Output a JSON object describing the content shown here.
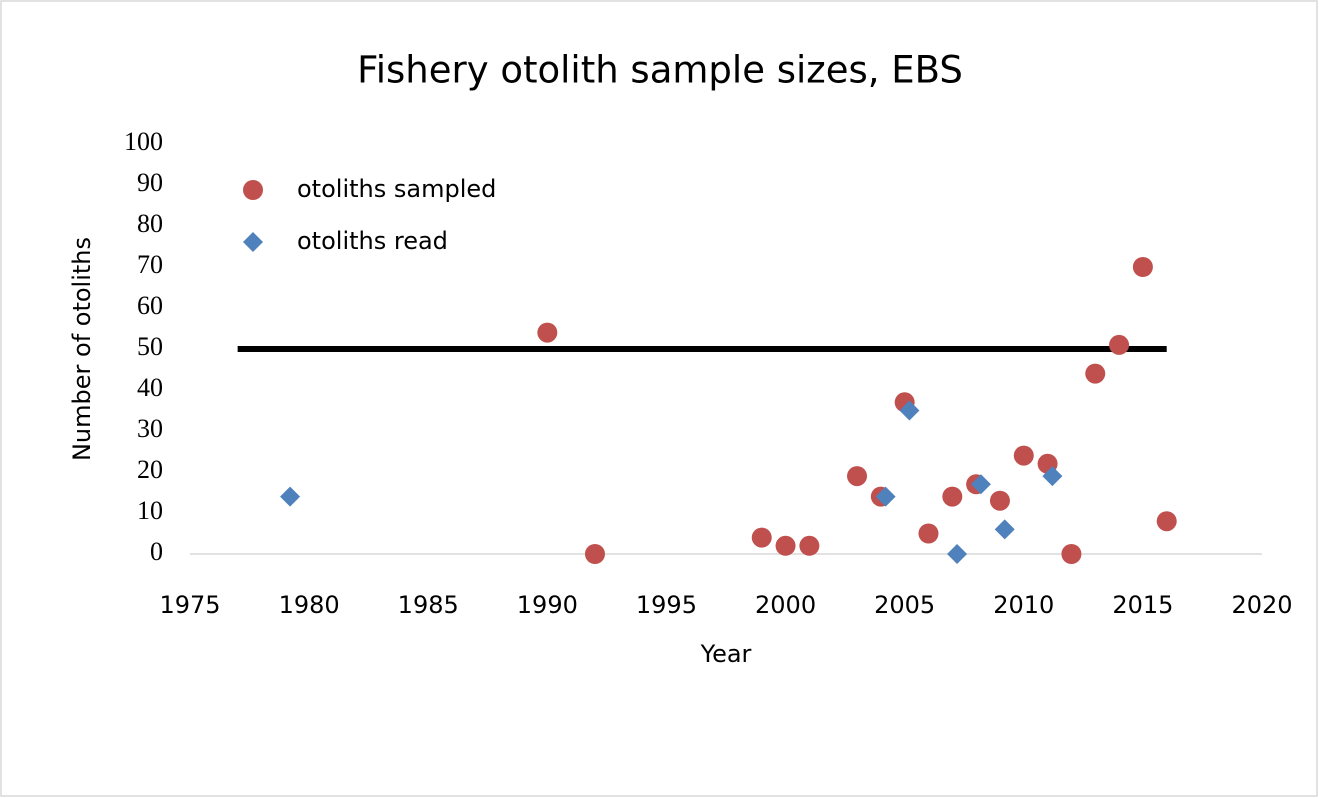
{
  "chart_data": {
    "type": "scatter",
    "title": "Fishery otolith sample sizes, EBS",
    "x_label": "Year",
    "y_label": "Number of otoliths",
    "xlim": [
      1975,
      2020
    ],
    "xticks": [
      1975,
      1980,
      1985,
      1990,
      1995,
      2000,
      2005,
      2010,
      2015,
      2020
    ],
    "ylim": [
      0,
      100
    ],
    "yticks": [
      0,
      10,
      20,
      30,
      40,
      50,
      60,
      70,
      80,
      90,
      100
    ],
    "legend": "top-left",
    "series": [
      {
        "name": "otoliths sampled",
        "color": "#c0504d",
        "marker": "circle",
        "x": [
          1990,
          1992,
          1999,
          2000,
          2001,
          2003,
          2004,
          2005,
          2006,
          2007,
          2008,
          2009,
          2010,
          2011,
          2012,
          2013,
          2014,
          2015,
          2016
        ],
        "values": [
          54,
          0,
          4,
          2,
          2,
          19,
          14,
          37,
          5,
          14,
          17,
          13,
          24,
          22,
          0,
          44,
          51,
          70,
          8
        ]
      },
      {
        "name": "otoliths read",
        "color": "#4f81bd",
        "marker": "diamond",
        "x": [
          1979.2,
          2004.2,
          2005.2,
          2007.2,
          2008.2,
          2009.2,
          2011.2
        ],
        "values": [
          14,
          14,
          35,
          0,
          17,
          6,
          19
        ]
      }
    ],
    "reference_line": {
      "x": [
        1977,
        2016
      ],
      "y": 50,
      "color": "#000000"
    }
  }
}
